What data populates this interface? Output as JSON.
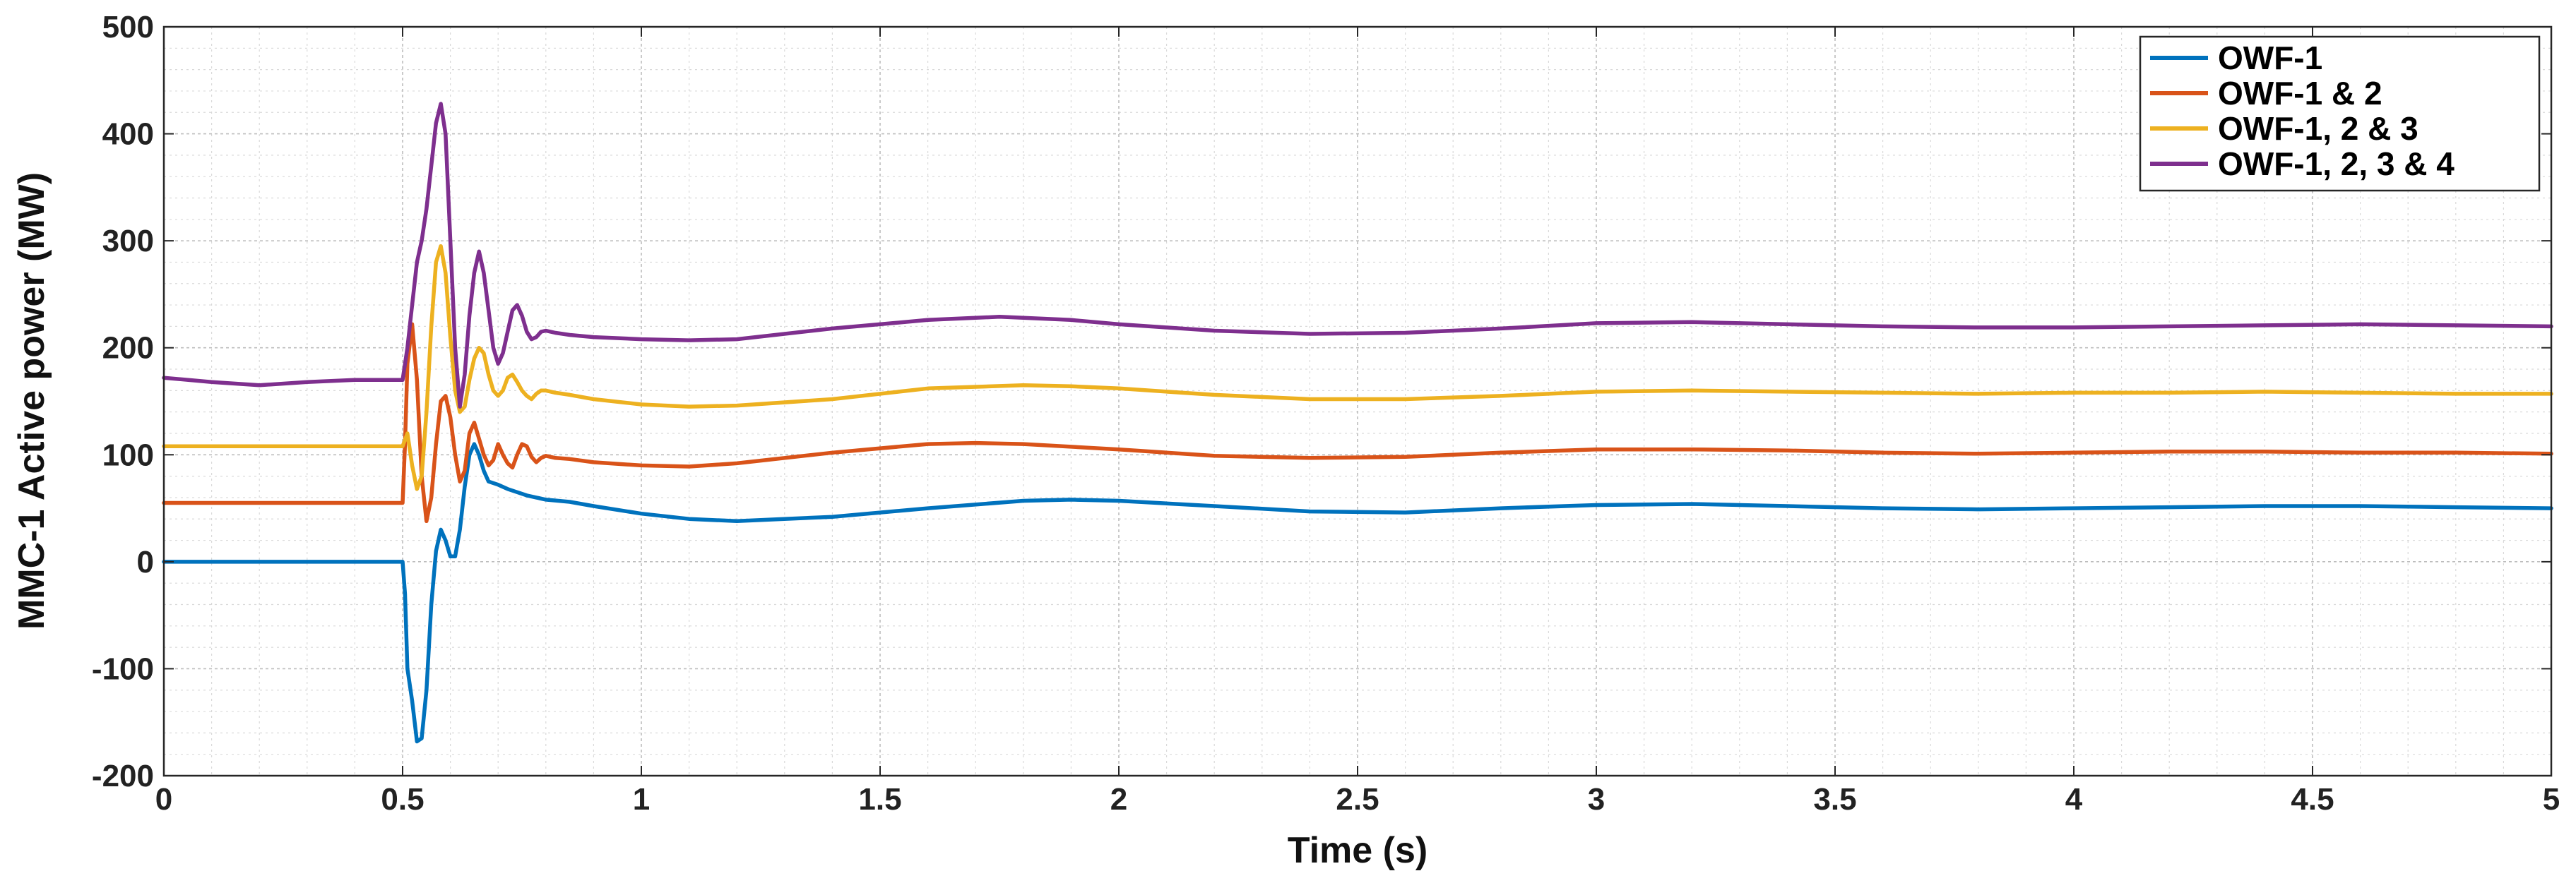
{
  "chart_data": {
    "type": "line",
    "title": "",
    "xlabel": "Time (s)",
    "ylabel": "MMC-1 Active power (MW)",
    "xlim": [
      0,
      5
    ],
    "ylim": [
      -200,
      500
    ],
    "xticks": [
      0,
      0.5,
      1,
      1.5,
      2,
      2.5,
      3,
      3.5,
      4,
      4.5,
      5
    ],
    "xtick_labels": [
      "0",
      "0.5",
      "1",
      "1.5",
      "2",
      "2.5",
      "3",
      "3.5",
      "4",
      "4.5",
      "5"
    ],
    "yticks": [
      -200,
      -100,
      0,
      100,
      200,
      300,
      400,
      500
    ],
    "ytick_labels": [
      "-200",
      "-100",
      "0",
      "100",
      "200",
      "300",
      "400",
      "500"
    ],
    "grid": true,
    "minor_grid": true,
    "legend_position": "top-right",
    "series": [
      {
        "name": "OWF-1",
        "color": "#0072BD",
        "x": [
          0,
          0.5,
          0.505,
          0.51,
          0.52,
          0.53,
          0.54,
          0.55,
          0.56,
          0.57,
          0.58,
          0.59,
          0.6,
          0.61,
          0.62,
          0.63,
          0.64,
          0.65,
          0.66,
          0.67,
          0.68,
          0.7,
          0.72,
          0.74,
          0.76,
          0.78,
          0.8,
          0.85,
          0.9,
          1.0,
          1.1,
          1.2,
          1.4,
          1.6,
          1.8,
          1.9,
          2.0,
          2.2,
          2.4,
          2.6,
          2.8,
          3.0,
          3.2,
          3.4,
          3.6,
          3.8,
          4.0,
          4.2,
          4.4,
          4.6,
          4.8,
          5.0
        ],
        "y": [
          0,
          0,
          -30,
          -100,
          -130,
          -168,
          -165,
          -120,
          -40,
          10,
          30,
          20,
          5,
          5,
          30,
          70,
          100,
          110,
          100,
          85,
          75,
          72,
          68,
          65,
          62,
          60,
          58,
          56,
          52,
          45,
          40,
          38,
          42,
          50,
          57,
          58,
          57,
          52,
          47,
          46,
          50,
          53,
          54,
          52,
          50,
          49,
          50,
          51,
          52,
          52,
          51,
          50
        ]
      },
      {
        "name": "OWF-1 & 2",
        "color": "#D95319",
        "x": [
          0,
          0.5,
          0.505,
          0.51,
          0.52,
          0.53,
          0.54,
          0.55,
          0.56,
          0.57,
          0.58,
          0.59,
          0.6,
          0.61,
          0.62,
          0.63,
          0.64,
          0.65,
          0.66,
          0.67,
          0.68,
          0.69,
          0.7,
          0.71,
          0.72,
          0.73,
          0.74,
          0.75,
          0.76,
          0.77,
          0.78,
          0.79,
          0.8,
          0.82,
          0.85,
          0.9,
          1.0,
          1.1,
          1.2,
          1.4,
          1.6,
          1.7,
          1.8,
          2.0,
          2.2,
          2.4,
          2.6,
          2.8,
          3.0,
          3.2,
          3.4,
          3.6,
          3.8,
          4.0,
          4.2,
          4.4,
          4.6,
          4.8,
          5.0
        ],
        "y": [
          55,
          55,
          110,
          185,
          222,
          170,
          80,
          38,
          60,
          110,
          150,
          155,
          135,
          100,
          75,
          85,
          120,
          130,
          115,
          100,
          90,
          95,
          110,
          100,
          92,
          88,
          100,
          110,
          108,
          98,
          93,
          97,
          99,
          97,
          96,
          93,
          90,
          89,
          92,
          102,
          110,
          111,
          110,
          105,
          99,
          97,
          98,
          102,
          105,
          105,
          104,
          102,
          101,
          102,
          103,
          103,
          102,
          102,
          101
        ]
      },
      {
        "name": "OWF-1, 2 & 3",
        "color": "#EDB120",
        "x": [
          0,
          0.5,
          0.51,
          0.52,
          0.53,
          0.54,
          0.55,
          0.56,
          0.57,
          0.58,
          0.59,
          0.6,
          0.61,
          0.62,
          0.63,
          0.64,
          0.65,
          0.66,
          0.67,
          0.68,
          0.69,
          0.7,
          0.71,
          0.72,
          0.73,
          0.74,
          0.75,
          0.76,
          0.77,
          0.78,
          0.79,
          0.8,
          0.82,
          0.85,
          0.9,
          1.0,
          1.1,
          1.2,
          1.4,
          1.6,
          1.8,
          1.9,
          2.0,
          2.2,
          2.4,
          2.6,
          2.8,
          3.0,
          3.2,
          3.4,
          3.6,
          3.8,
          4.0,
          4.2,
          4.4,
          4.6,
          4.8,
          5.0
        ],
        "y": [
          108,
          108,
          120,
          90,
          68,
          80,
          140,
          220,
          280,
          295,
          270,
          210,
          160,
          140,
          145,
          170,
          190,
          200,
          195,
          175,
          160,
          155,
          160,
          172,
          175,
          168,
          160,
          155,
          152,
          157,
          160,
          160,
          158,
          156,
          152,
          147,
          145,
          146,
          152,
          162,
          165,
          164,
          162,
          156,
          152,
          152,
          155,
          159,
          160,
          159,
          158,
          157,
          158,
          158,
          159,
          158,
          157,
          157
        ]
      },
      {
        "name": "OWF-1, 2, 3 & 4",
        "color": "#7E2F8E",
        "x": [
          0,
          0.1,
          0.2,
          0.3,
          0.4,
          0.5,
          0.51,
          0.52,
          0.53,
          0.54,
          0.55,
          0.56,
          0.57,
          0.58,
          0.59,
          0.6,
          0.61,
          0.62,
          0.63,
          0.64,
          0.65,
          0.66,
          0.67,
          0.68,
          0.69,
          0.7,
          0.71,
          0.72,
          0.73,
          0.74,
          0.75,
          0.76,
          0.77,
          0.78,
          0.79,
          0.8,
          0.82,
          0.85,
          0.9,
          1.0,
          1.1,
          1.2,
          1.4,
          1.6,
          1.75,
          1.9,
          2.0,
          2.2,
          2.4,
          2.6,
          2.8,
          3.0,
          3.2,
          3.4,
          3.6,
          3.8,
          4.0,
          4.2,
          4.4,
          4.6,
          4.8,
          5.0
        ],
        "y": [
          172,
          168,
          165,
          168,
          170,
          170,
          200,
          240,
          280,
          300,
          330,
          370,
          410,
          428,
          400,
          300,
          200,
          145,
          175,
          230,
          270,
          290,
          270,
          235,
          200,
          185,
          195,
          215,
          235,
          240,
          230,
          215,
          208,
          210,
          215,
          216,
          214,
          212,
          210,
          208,
          207,
          208,
          218,
          226,
          229,
          226,
          222,
          216,
          213,
          214,
          218,
          223,
          224,
          222,
          220,
          219,
          219,
          220,
          221,
          222,
          221,
          220
        ]
      }
    ]
  }
}
